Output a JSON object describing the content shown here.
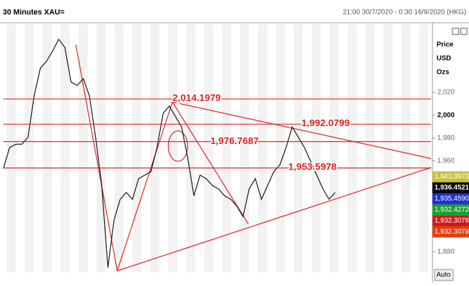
{
  "chart_data": {
    "type": "line",
    "title": "30 Minutes XAU=",
    "subtitle": "21:00 30/7/2020 - 0:30 16/9/2020 (HKG)",
    "y_axis_label": [
      "Price",
      "USD",
      "Ozs"
    ],
    "ylim": [
      1862,
      2080
    ],
    "yticks": [
      {
        "value": 2020,
        "label": "2,020"
      },
      {
        "value": 2000,
        "label": "2,000"
      },
      {
        "value": 1980,
        "label": "1,980"
      },
      {
        "value": 1960,
        "label": "1,960"
      },
      {
        "value": 1880,
        "label": "1,880"
      }
    ],
    "series": [
      {
        "name": "XAU=",
        "color": "#111111",
        "values": [
          1953.3,
          1971.5,
          1974.5,
          1974.5,
          1980.6,
          2017,
          2041.2,
          2047.3,
          2056.4,
          2066.7,
          2059.4,
          2029.1,
          2026.1,
          2032.1,
          2017,
          1980.6,
          1938.2,
          1866,
          1907.9,
          1926.1,
          1932.1,
          1926.1,
          1944.2,
          1947.3,
          1950.3,
          1971.5,
          2001.8,
          2007.9,
          1998.8,
          1989.7,
          1962.4,
          1929.1,
          1947.3,
          1944.2,
          1938.2,
          1935.2,
          1929.1,
          1926.1,
          1920,
          1910.9,
          1935.2,
          1944.2,
          1926.1,
          1938.2,
          1950.3,
          1956.4,
          1971.5,
          1989.7,
          1980.6,
          1971.5,
          1959.4,
          1947.3,
          1935.2,
          1926.1,
          1932.1
        ]
      }
    ],
    "levels": [
      {
        "value": 2014.1979,
        "label": "2,014.1979"
      },
      {
        "value": 1992.0799,
        "label": "1,992.0799"
      },
      {
        "value": 1976.7687,
        "label": "1,976.7687"
      },
      {
        "value": 1953.5978,
        "label": "1,953.5978"
      }
    ],
    "level_color": "#e02020",
    "price_boxes": [
      {
        "value": 1943.3973,
        "label": "1,943.3973",
        "color": "#c8c23c"
      },
      {
        "value": 1936.4521,
        "label": "1,936.4521",
        "color": "#000000"
      },
      {
        "value": 1935.459,
        "label": "1,935.4590",
        "color": "#2030d0"
      },
      {
        "value": 1932.4272,
        "label": "1,932.4272",
        "color": "#18a030"
      },
      {
        "value": 1932.3078,
        "label": "1,932.3078",
        "color": "#d01818"
      },
      {
        "value": 1932.3078,
        "label": "1,932.3078",
        "color": "#e04010"
      }
    ],
    "button": "Auto"
  }
}
